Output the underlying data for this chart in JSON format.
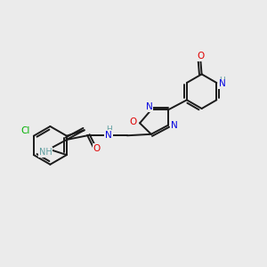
{
  "background_color": "#ebebeb",
  "bond_color": "#1a1a1a",
  "atom_colors": {
    "N": "#0000e0",
    "O": "#e00000",
    "Cl": "#00b000",
    "NH": "#5f9ea0",
    "C": "#1a1a1a"
  },
  "figsize": [
    3.0,
    3.0
  ],
  "dpi": 100,
  "xlim": [
    0,
    10
  ],
  "ylim": [
    0,
    10
  ]
}
